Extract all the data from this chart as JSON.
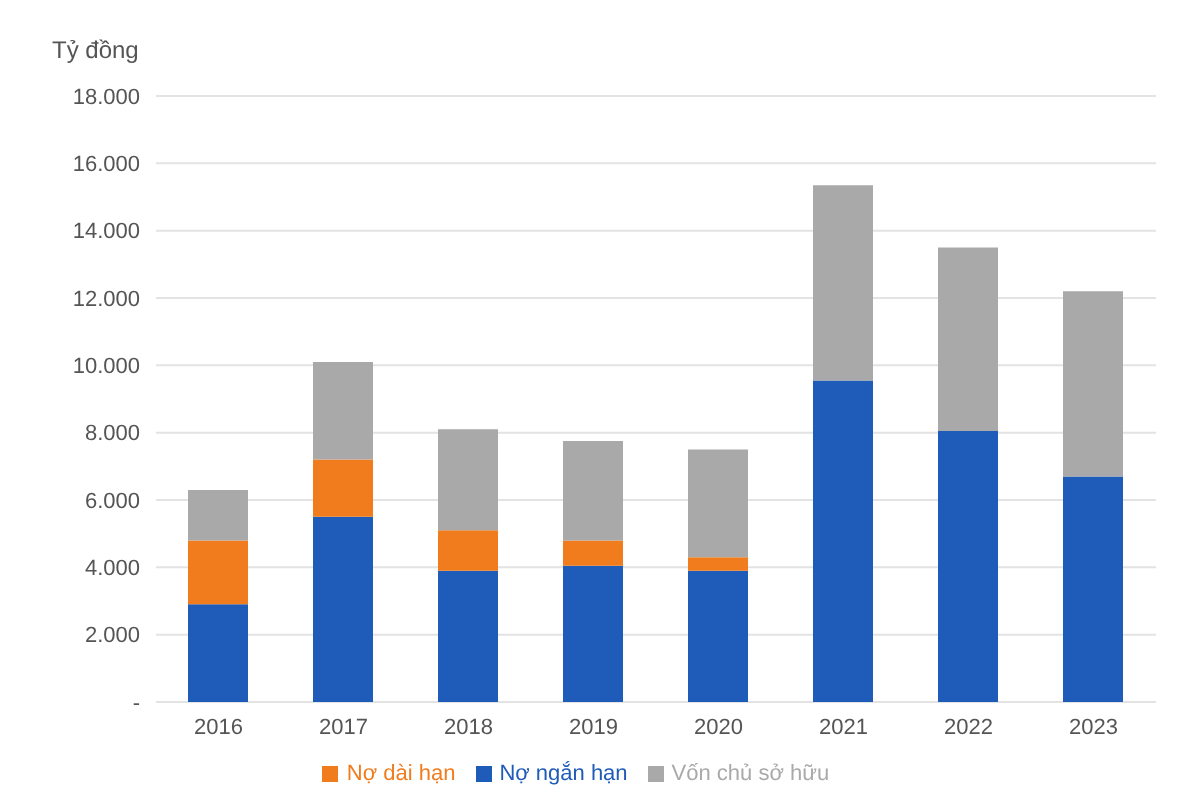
{
  "chart_data": {
    "type": "bar",
    "stacked": true,
    "ylabel": "Tỷ đồng",
    "categories": [
      "2016",
      "2017",
      "2018",
      "2019",
      "2020",
      "2021",
      "2022",
      "2023"
    ],
    "series": [
      {
        "name": "Nợ ngắn hạn",
        "color": "#1f5bb8",
        "values": [
          2900,
          5500,
          3900,
          4050,
          3900,
          9550,
          8050,
          6700
        ]
      },
      {
        "name": "Nợ dài hạn",
        "color": "#f07c1e",
        "values": [
          1900,
          1700,
          1200,
          750,
          400,
          0,
          0,
          0
        ]
      },
      {
        "name": "Vốn chủ sở hữu",
        "color": "#a9a9a9",
        "values": [
          1500,
          2900,
          3000,
          2950,
          3200,
          5800,
          5450,
          5500
        ]
      }
    ],
    "ylim": [
      0,
      18000
    ],
    "yticks": [
      {
        "value": 0,
        "label": "-"
      },
      {
        "value": 2000,
        "label": "2.000"
      },
      {
        "value": 4000,
        "label": "4.000"
      },
      {
        "value": 6000,
        "label": "6.000"
      },
      {
        "value": 8000,
        "label": "8.000"
      },
      {
        "value": 10000,
        "label": "10.000"
      },
      {
        "value": 12000,
        "label": "12.000"
      },
      {
        "value": 14000,
        "label": "14.000"
      },
      {
        "value": 16000,
        "label": "16.000"
      },
      {
        "value": 18000,
        "label": "18.000"
      }
    ],
    "grid": "y",
    "legend": "bottom"
  }
}
